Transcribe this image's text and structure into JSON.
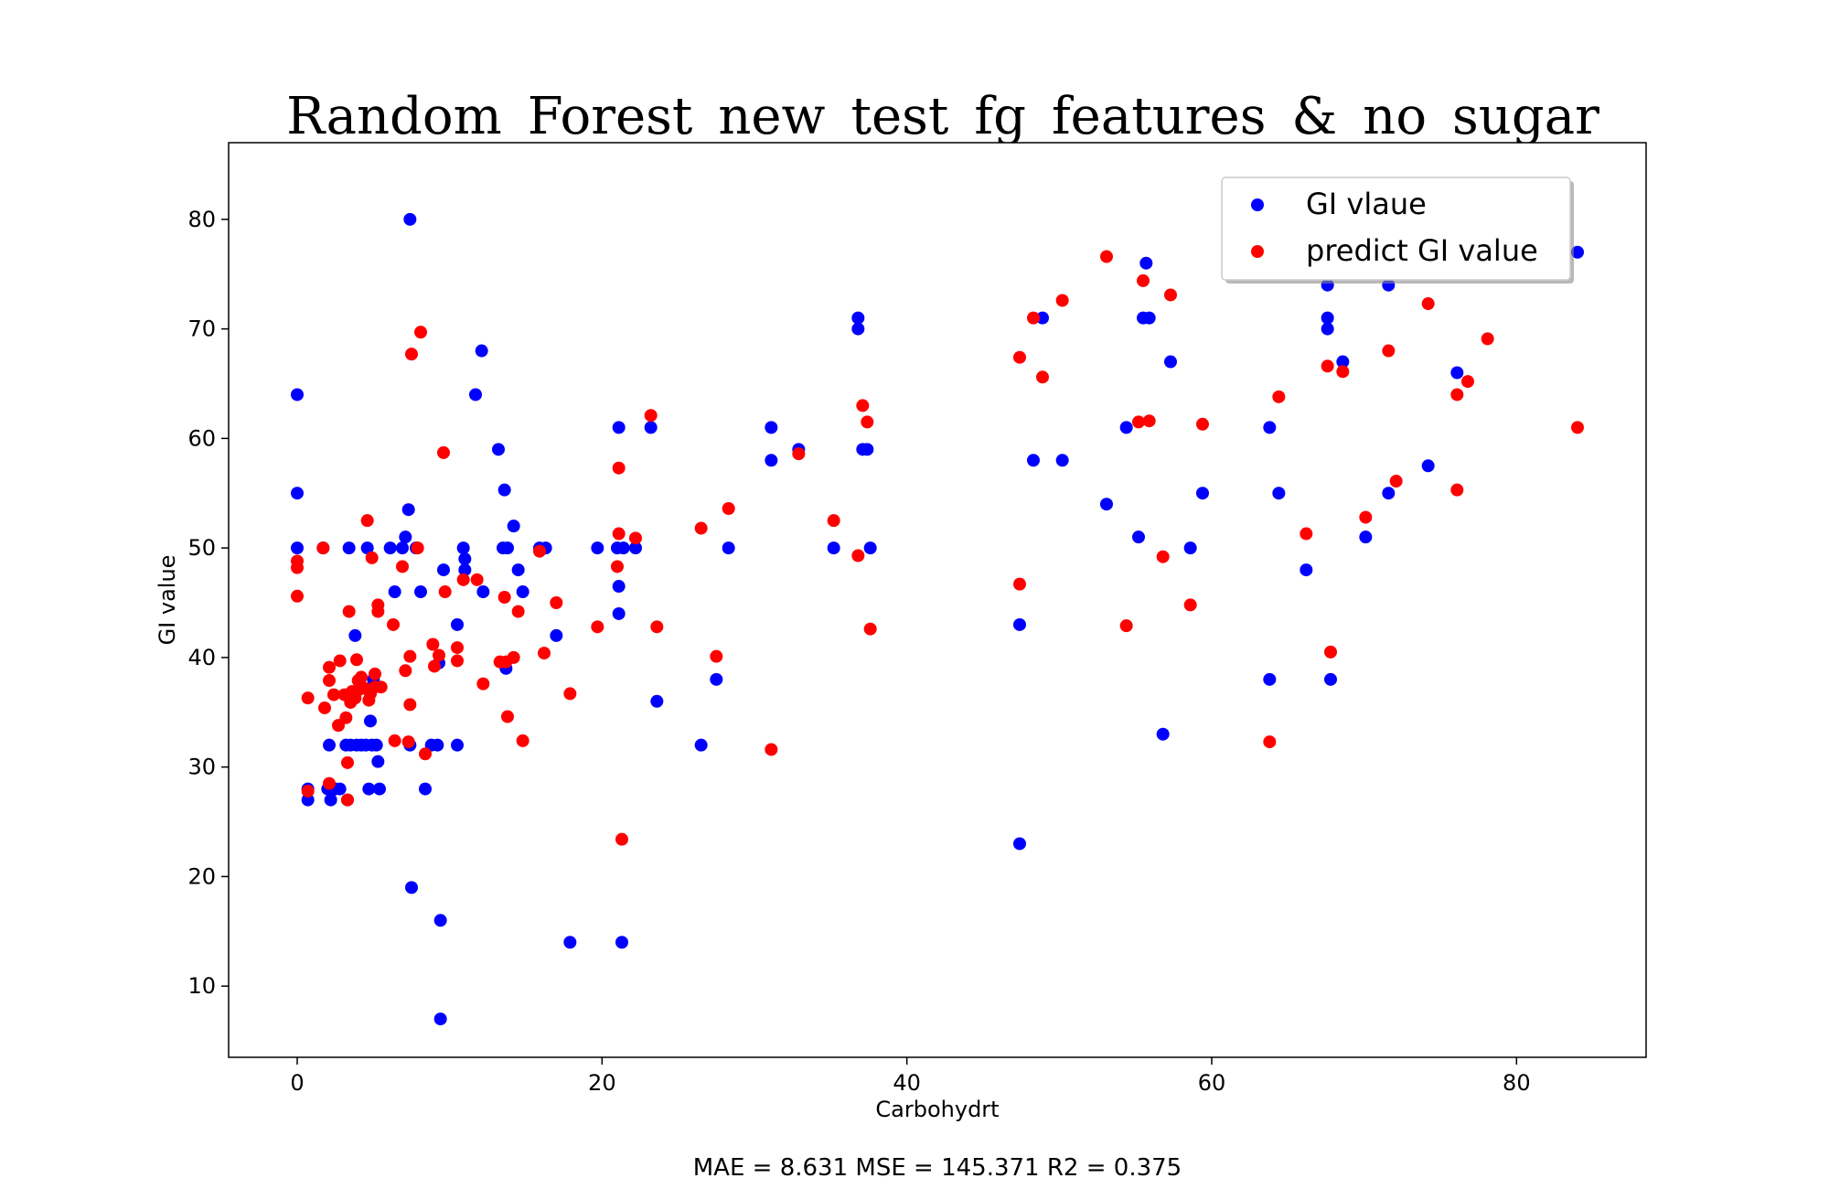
{
  "chart_data": {
    "type": "scatter",
    "title": "Random_Forest_new_test_fg_features_&_no_sugar",
    "xlabel": "Carbohydrt",
    "ylabel": "GI value",
    "xlim": [
      -4.5,
      88.5
    ],
    "ylim": [
      3.5,
      87
    ],
    "x_ticks": [
      0,
      20,
      40,
      60,
      80
    ],
    "y_ticks": [
      10,
      20,
      30,
      40,
      50,
      60,
      70,
      80
    ],
    "grid": false,
    "legend_position": "top-right",
    "footer": "MAE = 8.631 MSE = 145.371 R2 = 0.375",
    "series": [
      {
        "name": "GI vlaue",
        "color": "#0000ff",
        "points": [
          [
            0,
            64
          ],
          [
            0,
            55
          ],
          [
            0,
            50
          ],
          [
            0.7,
            28
          ],
          [
            0.7,
            27
          ],
          [
            1.7,
            50
          ],
          [
            2,
            28
          ],
          [
            2.1,
            32
          ],
          [
            2.2,
            27
          ],
          [
            2.5,
            28
          ],
          [
            2.8,
            28
          ],
          [
            3.2,
            32
          ],
          [
            3.3,
            27
          ],
          [
            3.4,
            50
          ],
          [
            3.5,
            32
          ],
          [
            3.8,
            42
          ],
          [
            3.9,
            32
          ],
          [
            4.2,
            32
          ],
          [
            4.5,
            32
          ],
          [
            4.6,
            50
          ],
          [
            4.7,
            28
          ],
          [
            4.8,
            34.2
          ],
          [
            4.9,
            32
          ],
          [
            5,
            38
          ],
          [
            5.2,
            32
          ],
          [
            5.3,
            30.5
          ],
          [
            5.4,
            28
          ],
          [
            6.1,
            50
          ],
          [
            6.4,
            46
          ],
          [
            6.9,
            50
          ],
          [
            7.1,
            51
          ],
          [
            7.3,
            53.5
          ],
          [
            7.4,
            80
          ],
          [
            7.4,
            32
          ],
          [
            7.5,
            19
          ],
          [
            7.8,
            50
          ],
          [
            8.1,
            46
          ],
          [
            8.4,
            28
          ],
          [
            8.8,
            32
          ],
          [
            9.2,
            32
          ],
          [
            9.3,
            39.5
          ],
          [
            9.4,
            16
          ],
          [
            9.4,
            7
          ],
          [
            9.6,
            48
          ],
          [
            10.5,
            43
          ],
          [
            10.5,
            32
          ],
          [
            10.9,
            50
          ],
          [
            11,
            49
          ],
          [
            11,
            48
          ],
          [
            11.7,
            64
          ],
          [
            12.1,
            68
          ],
          [
            12.2,
            46
          ],
          [
            13.2,
            59
          ],
          [
            13.5,
            50
          ],
          [
            13.6,
            55.3
          ],
          [
            13.7,
            39
          ],
          [
            13.8,
            50
          ],
          [
            14.2,
            52
          ],
          [
            14.5,
            48
          ],
          [
            14.8,
            46
          ],
          [
            15.9,
            50
          ],
          [
            16.3,
            50
          ],
          [
            17,
            42
          ],
          [
            17.9,
            14
          ],
          [
            19.7,
            50
          ],
          [
            21,
            50
          ],
          [
            21.1,
            61
          ],
          [
            21.1,
            46.5
          ],
          [
            21.1,
            44
          ],
          [
            21.3,
            14
          ],
          [
            21.4,
            50
          ],
          [
            22.2,
            50
          ],
          [
            23.2,
            61
          ],
          [
            23.6,
            36
          ],
          [
            26.5,
            32
          ],
          [
            27.5,
            38
          ],
          [
            28.3,
            50
          ],
          [
            31.1,
            61
          ],
          [
            31.1,
            58
          ],
          [
            32.9,
            59
          ],
          [
            35.2,
            50
          ],
          [
            36.8,
            71
          ],
          [
            36.8,
            70
          ],
          [
            37.1,
            59
          ],
          [
            37.4,
            59
          ],
          [
            37.6,
            50
          ],
          [
            47.4,
            43
          ],
          [
            47.4,
            23
          ],
          [
            48.3,
            58
          ],
          [
            48.9,
            71
          ],
          [
            50.2,
            58
          ],
          [
            53.1,
            54
          ],
          [
            54.4,
            61
          ],
          [
            55.2,
            51
          ],
          [
            55.5,
            71
          ],
          [
            55.7,
            76
          ],
          [
            55.9,
            71
          ],
          [
            56.8,
            33
          ],
          [
            57.3,
            67
          ],
          [
            58.6,
            50
          ],
          [
            59.4,
            55
          ],
          [
            63.8,
            61
          ],
          [
            63.8,
            38
          ],
          [
            64.4,
            55
          ],
          [
            66.2,
            48
          ],
          [
            67.6,
            74
          ],
          [
            67.6,
            71
          ],
          [
            67.6,
            70
          ],
          [
            67.8,
            38
          ],
          [
            68.6,
            67
          ],
          [
            70.1,
            51
          ],
          [
            71.6,
            74
          ],
          [
            71.6,
            55
          ],
          [
            74.2,
            57.5
          ],
          [
            76.1,
            66
          ],
          [
            84,
            77
          ]
        ]
      },
      {
        "name": "predict GI value",
        "color": "#ff0000",
        "points": [
          [
            0,
            48.8
          ],
          [
            0,
            48.2
          ],
          [
            0,
            45.6
          ],
          [
            0.7,
            36.3
          ],
          [
            0.7,
            27.8
          ],
          [
            1.7,
            50
          ],
          [
            1.8,
            35.4
          ],
          [
            2.1,
            37.9
          ],
          [
            2.1,
            39.1
          ],
          [
            2.1,
            28.5
          ],
          [
            2.4,
            36.6
          ],
          [
            2.7,
            33.8
          ],
          [
            2.8,
            39.7
          ],
          [
            3.1,
            36.6
          ],
          [
            3.2,
            34.5
          ],
          [
            3.3,
            30.4
          ],
          [
            3.3,
            27
          ],
          [
            3.4,
            44.2
          ],
          [
            3.5,
            35.9
          ],
          [
            3.6,
            36.9
          ],
          [
            3.8,
            36.3
          ],
          [
            3.9,
            39.8
          ],
          [
            4,
            37.9
          ],
          [
            4.1,
            37.1
          ],
          [
            4.2,
            38.2
          ],
          [
            4.4,
            37.2
          ],
          [
            4.6,
            52.5
          ],
          [
            4.7,
            36.1
          ],
          [
            4.8,
            36.7
          ],
          [
            4.9,
            49.1
          ],
          [
            5.1,
            38.5
          ],
          [
            5.1,
            37.3
          ],
          [
            5.3,
            44.8
          ],
          [
            5.3,
            44.2
          ],
          [
            5.5,
            37.3
          ],
          [
            6.3,
            43
          ],
          [
            6.4,
            32.4
          ],
          [
            6.9,
            48.3
          ],
          [
            7.1,
            38.8
          ],
          [
            7.3,
            32.3
          ],
          [
            7.4,
            40.1
          ],
          [
            7.4,
            35.7
          ],
          [
            7.5,
            67.7
          ],
          [
            7.9,
            50
          ],
          [
            8.1,
            69.7
          ],
          [
            8.4,
            31.2
          ],
          [
            8.9,
            41.2
          ],
          [
            9,
            39.2
          ],
          [
            9.3,
            40.2
          ],
          [
            9.6,
            58.7
          ],
          [
            9.7,
            46
          ],
          [
            10.5,
            40.9
          ],
          [
            10.5,
            39.7
          ],
          [
            10.9,
            47.1
          ],
          [
            11.8,
            47.1
          ],
          [
            12.2,
            37.6
          ],
          [
            13.3,
            39.6
          ],
          [
            13.6,
            45.5
          ],
          [
            13.7,
            39.6
          ],
          [
            13.8,
            34.6
          ],
          [
            14.2,
            40
          ],
          [
            14.5,
            44.2
          ],
          [
            14.8,
            32.4
          ],
          [
            15.9,
            49.7
          ],
          [
            16.2,
            40.4
          ],
          [
            17,
            45
          ],
          [
            17.9,
            36.7
          ],
          [
            19.7,
            42.8
          ],
          [
            21,
            48.3
          ],
          [
            21.1,
            57.3
          ],
          [
            21.1,
            51.3
          ],
          [
            21.3,
            23.4
          ],
          [
            22.2,
            50.9
          ],
          [
            23.2,
            62.1
          ],
          [
            23.6,
            42.8
          ],
          [
            26.5,
            51.8
          ],
          [
            27.5,
            40.1
          ],
          [
            28.3,
            53.6
          ],
          [
            31.1,
            31.6
          ],
          [
            32.9,
            58.6
          ],
          [
            35.2,
            52.5
          ],
          [
            36.8,
            49.3
          ],
          [
            37.1,
            63
          ],
          [
            37.4,
            61.5
          ],
          [
            37.6,
            42.6
          ],
          [
            47.4,
            67.4
          ],
          [
            47.4,
            46.7
          ],
          [
            48.3,
            71
          ],
          [
            48.9,
            65.6
          ],
          [
            50.2,
            72.6
          ],
          [
            53.1,
            76.6
          ],
          [
            54.4,
            42.9
          ],
          [
            55.2,
            61.5
          ],
          [
            55.5,
            74.4
          ],
          [
            55.9,
            61.6
          ],
          [
            56.8,
            49.2
          ],
          [
            57.3,
            73.1
          ],
          [
            58.6,
            44.8
          ],
          [
            59.4,
            61.3
          ],
          [
            63.8,
            32.3
          ],
          [
            64.4,
            63.8
          ],
          [
            66.2,
            51.3
          ],
          [
            67.6,
            66.6
          ],
          [
            67.8,
            40.5
          ],
          [
            68.6,
            66.1
          ],
          [
            70.1,
            52.8
          ],
          [
            71.6,
            68
          ],
          [
            72.1,
            56.1
          ],
          [
            74.2,
            72.3
          ],
          [
            76.1,
            64
          ],
          [
            76.1,
            55.3
          ],
          [
            76.8,
            65.2
          ],
          [
            78.1,
            69.1
          ],
          [
            84,
            61
          ]
        ]
      }
    ]
  }
}
